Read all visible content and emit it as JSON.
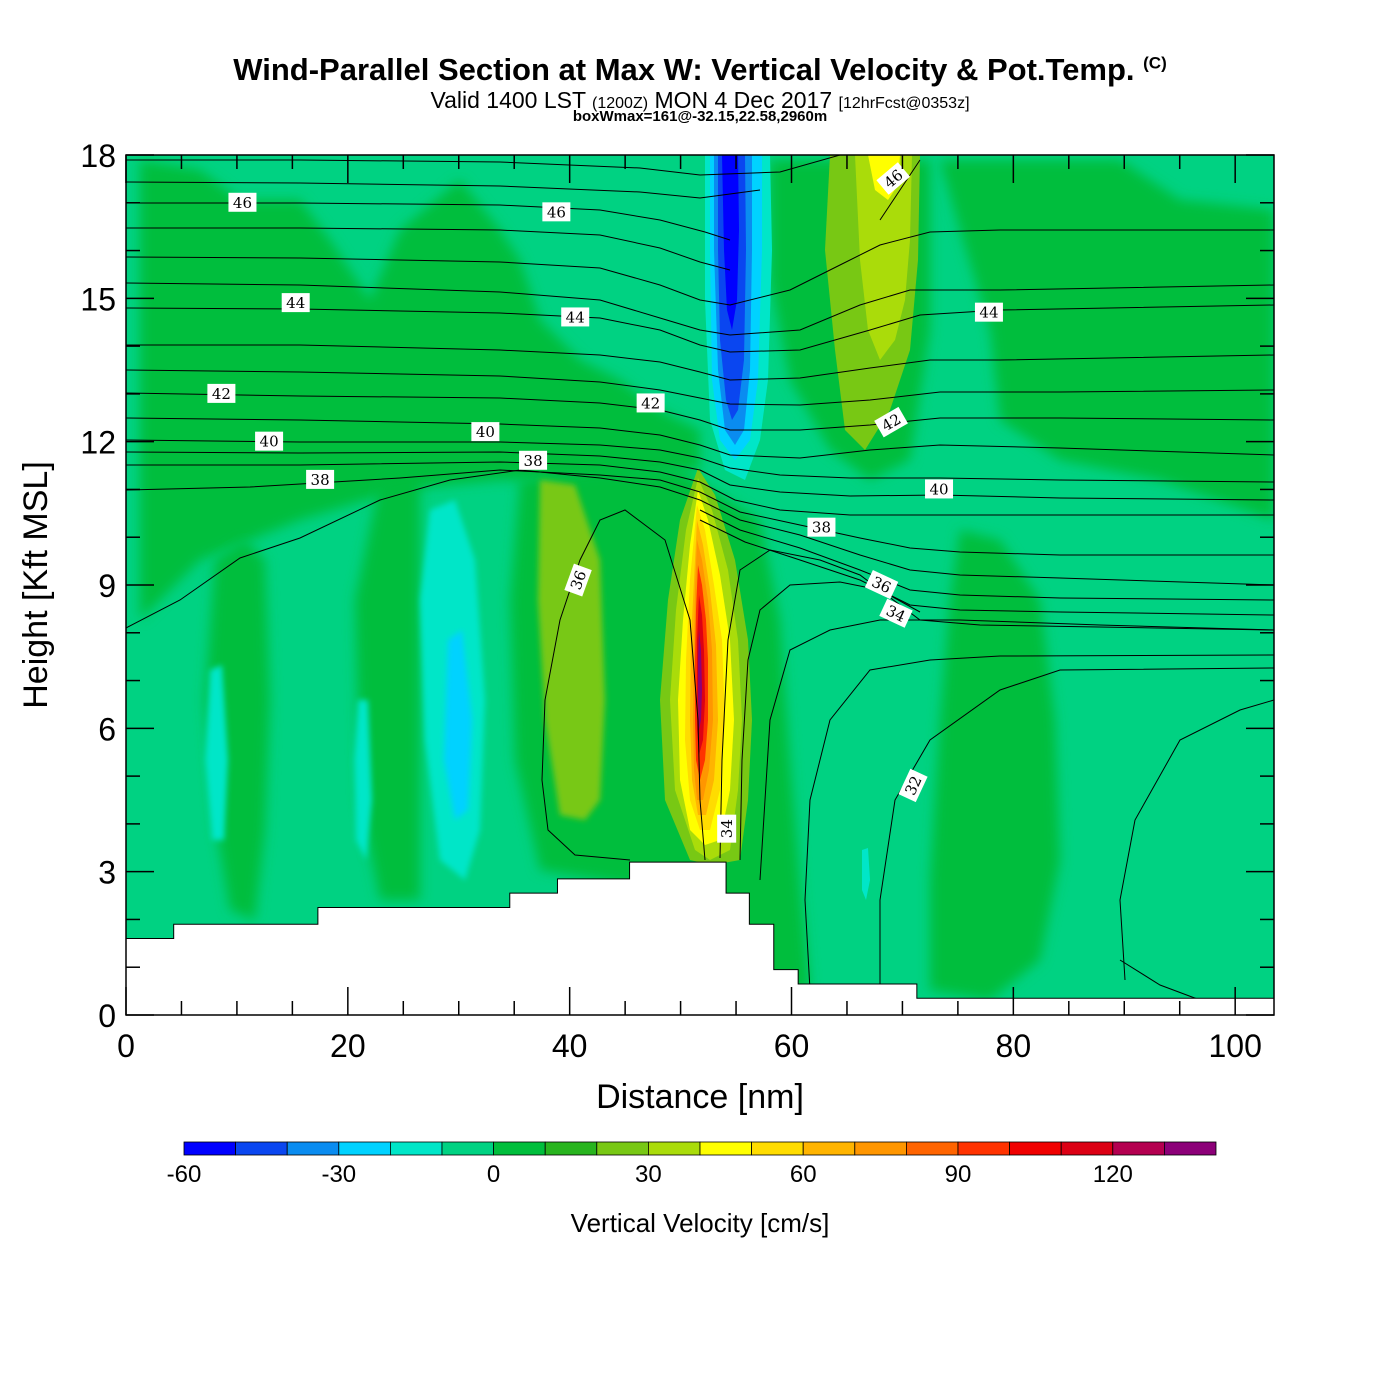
{
  "header": {
    "title": "Wind-Parallel Section at Max W: Vertical Velocity & Pot.Temp.",
    "copyright": "(C)",
    "valid_prefix": "Valid 1400 LST",
    "valid_utc": "(1200Z)",
    "valid_date": "MON 4 Dec 2017",
    "forecast": "[12hrFcst@0353z]",
    "boxwmax": "boxWmax=161@-32.15,22.58,2960m"
  },
  "chart_data": {
    "type": "heatmap",
    "title": "Wind-Parallel Section at Max W: Vertical Velocity & Pot.Temp.",
    "xlabel": "Distance [nm]",
    "ylabel": "Height [Kft MSL]",
    "xlim": [
      0,
      103.5
    ],
    "ylim": [
      0,
      18
    ],
    "x_ticks": [
      0,
      20,
      40,
      60,
      80,
      100
    ],
    "y_ticks": [
      0,
      3,
      6,
      9,
      12,
      15,
      18
    ],
    "colorbar": {
      "title": "Vertical Velocity [cm/s]",
      "tick_values": [
        -60,
        -30,
        0,
        30,
        60,
        90,
        120
      ],
      "tick_labels": [
        "-60",
        "-30",
        "0",
        "30",
        "60",
        "90",
        "120"
      ],
      "levels": [
        -60,
        -50,
        -40,
        -30,
        -20,
        -10,
        0,
        10,
        20,
        30,
        40,
        50,
        60,
        70,
        80,
        90,
        100,
        110,
        120,
        130,
        140
      ],
      "colors": [
        "#0000ff",
        "#0a46f0",
        "#0a8cf0",
        "#00d2ff",
        "#00e6c8",
        "#00d282",
        "#00be3c",
        "#28b41e",
        "#78c814",
        "#aadc0a",
        "#ffff00",
        "#ffdc00",
        "#ffb400",
        "#ff9600",
        "#ff6400",
        "#ff3200",
        "#f00000",
        "#dc0014",
        "#b40050",
        "#8c0078"
      ]
    },
    "theta_contour_labels": [
      {
        "text": "46",
        "x": 10.5,
        "y": 17.0
      },
      {
        "text": "46",
        "x": 38.8,
        "y": 16.8
      },
      {
        "text": "46",
        "x": 69.2,
        "y": 17.5,
        "angle": -40
      },
      {
        "text": "44",
        "x": 15.3,
        "y": 14.9
      },
      {
        "text": "44",
        "x": 40.5,
        "y": 14.6
      },
      {
        "text": "44",
        "x": 77.8,
        "y": 14.7
      },
      {
        "text": "42",
        "x": 8.6,
        "y": 13.0
      },
      {
        "text": "42",
        "x": 47.3,
        "y": 12.8
      },
      {
        "text": "42",
        "x": 69.0,
        "y": 12.4,
        "angle": -30
      },
      {
        "text": "40",
        "x": 12.9,
        "y": 12.0
      },
      {
        "text": "40",
        "x": 32.4,
        "y": 12.2
      },
      {
        "text": "40",
        "x": 73.3,
        "y": 11.0
      },
      {
        "text": "38",
        "x": 17.5,
        "y": 11.2
      },
      {
        "text": "38",
        "x": 36.7,
        "y": 11.6
      },
      {
        "text": "38",
        "x": 62.7,
        "y": 10.2
      },
      {
        "text": "36",
        "x": 40.8,
        "y": 9.1,
        "angle": -70
      },
      {
        "text": "36",
        "x": 68.1,
        "y": 9.0,
        "angle": 25
      },
      {
        "text": "34",
        "x": 69.4,
        "y": 8.4,
        "angle": 25
      },
      {
        "text": "34",
        "x": 54.2,
        "y": 3.9,
        "angle": -90
      },
      {
        "text": "32",
        "x": 71.0,
        "y": 4.8,
        "angle": -65
      }
    ],
    "terrain_profile": [
      {
        "x": 0,
        "h": 1.6
      },
      {
        "x": 4.3,
        "h": 1.9
      },
      {
        "x": 17.3,
        "h": 2.25
      },
      {
        "x": 34.6,
        "h": 2.55
      },
      {
        "x": 38.9,
        "h": 2.85
      },
      {
        "x": 45.4,
        "h": 3.2
      },
      {
        "x": 54.1,
        "h": 2.55
      },
      {
        "x": 56.2,
        "h": 1.9
      },
      {
        "x": 58.4,
        "h": 0.95
      },
      {
        "x": 60.6,
        "h": 0.65
      },
      {
        "x": 71.3,
        "h": 0.35
      },
      {
        "x": 103.5,
        "h": 0.35
      }
    ],
    "max_updraft": {
      "value": 161,
      "x": 52.3,
      "y": 7.3
    }
  }
}
